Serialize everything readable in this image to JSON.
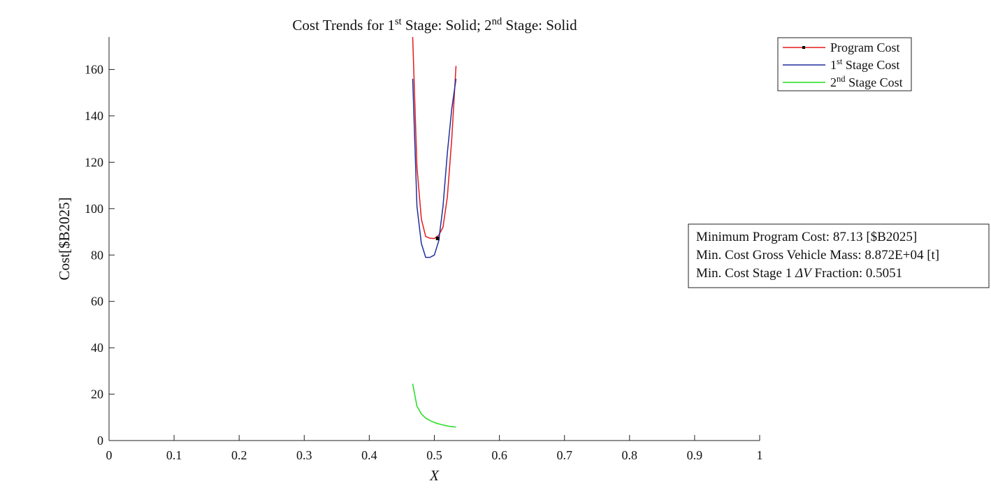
{
  "chart_data": {
    "type": "line",
    "title": {
      "parts": [
        {
          "text": "Cost Trends for 1"
        },
        {
          "text": "st",
          "sup": true
        },
        {
          "text": " Stage: Solid; 2"
        },
        {
          "text": "nd",
          "sup": true
        },
        {
          "text": " Stage: Solid"
        }
      ]
    },
    "xlabel": "X",
    "ylabel": "Cost[$B2025]",
    "xlim": [
      0,
      1
    ],
    "ylim": [
      0,
      174
    ],
    "xticks": [
      0,
      0.1,
      0.2,
      0.3,
      0.4,
      0.5,
      0.6,
      0.7,
      0.8,
      0.9,
      1
    ],
    "xtick_labels": [
      "0",
      "0.1",
      "0.2",
      "0.3",
      "0.4",
      "0.5",
      "0.6",
      "0.7",
      "0.8",
      "0.9",
      "1"
    ],
    "yticks": [
      0,
      20,
      40,
      60,
      80,
      100,
      120,
      140,
      160
    ],
    "ytick_labels": [
      "0",
      "20",
      "40",
      "60",
      "80",
      "100",
      "120",
      "140",
      "160"
    ],
    "grid": false,
    "legend_position": "top-right",
    "series": [
      {
        "color": "#e31a1c",
        "legend": [
          {
            "text": "Program Cost"
          }
        ],
        "x": [
          0.4667,
          0.4733,
          0.48,
          0.4867,
          0.4933,
          0.5,
          0.5067,
          0.5133,
          0.52,
          0.5267,
          0.5333
        ],
        "y": [
          174,
          118,
          95.5,
          88,
          87.2,
          87.13,
          88.5,
          92,
          105,
          130,
          161.5
        ]
      },
      {
        "color": "#1f2fa0",
        "legend": [
          {
            "text": "1"
          },
          {
            "text": "st",
            "sup": true
          },
          {
            "text": " Stage Cost"
          }
        ],
        "x": [
          0.4667,
          0.4733,
          0.48,
          0.4867,
          0.4933,
          0.5,
          0.5067,
          0.5133,
          0.52,
          0.5267,
          0.5333
        ],
        "y": [
          156,
          101,
          85,
          79,
          79,
          80,
          86,
          101,
          124,
          143,
          156
        ]
      },
      {
        "color": "#22dd22",
        "legend": [
          {
            "text": "2"
          },
          {
            "text": "nd",
            "sup": true
          },
          {
            "text": " Stage Cost"
          }
        ],
        "x": [
          0.4667,
          0.4733,
          0.48,
          0.4867,
          0.4933,
          0.5,
          0.5067,
          0.5133,
          0.52,
          0.5267,
          0.5333
        ],
        "y": [
          24.5,
          14.8,
          11.5,
          9.7,
          8.6,
          7.8,
          7.2,
          6.7,
          6.3,
          6.0,
          5.8
        ]
      }
    ],
    "minimum_marker": {
      "x": 0.5051,
      "y": 87.13,
      "color": "#000000"
    },
    "annotation": {
      "position": "right-middle",
      "lines": [
        [
          {
            "text": "Minimum Program Cost: 87.13 [$B2025]"
          }
        ],
        [
          {
            "text": "Min. Cost Gross Vehicle Mass: 8.872E+04 [t]"
          }
        ],
        [
          {
            "text": "Min. Cost Stage 1 "
          },
          {
            "text": "ΔV",
            "italic": true
          },
          {
            "text": " Fraction: 0.5051"
          }
        ]
      ]
    }
  }
}
